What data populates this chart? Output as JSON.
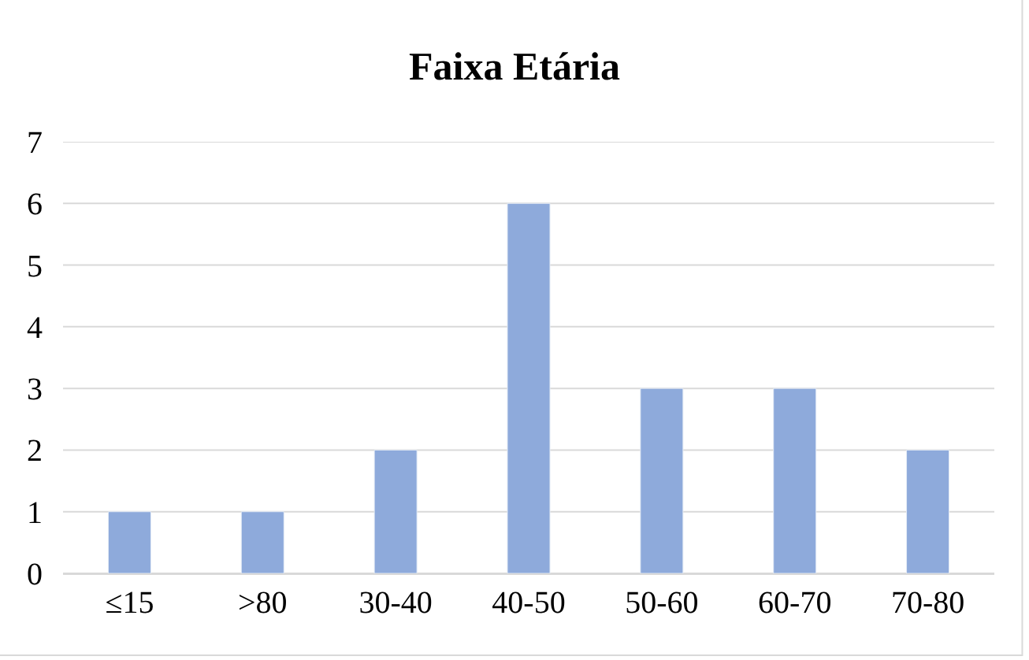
{
  "chart_data": {
    "type": "bar",
    "title": "Faixa Etária",
    "categories": [
      "≤15",
      ">80",
      "30-40",
      "40-50",
      "50-60",
      "60-70",
      "70-80"
    ],
    "values": [
      1,
      1,
      2,
      6,
      3,
      3,
      2
    ],
    "color": "#8eaadb",
    "ylim": [
      0,
      7
    ],
    "yticks": [
      0,
      1,
      2,
      3,
      4,
      5,
      6,
      7
    ],
    "grid": "y"
  }
}
